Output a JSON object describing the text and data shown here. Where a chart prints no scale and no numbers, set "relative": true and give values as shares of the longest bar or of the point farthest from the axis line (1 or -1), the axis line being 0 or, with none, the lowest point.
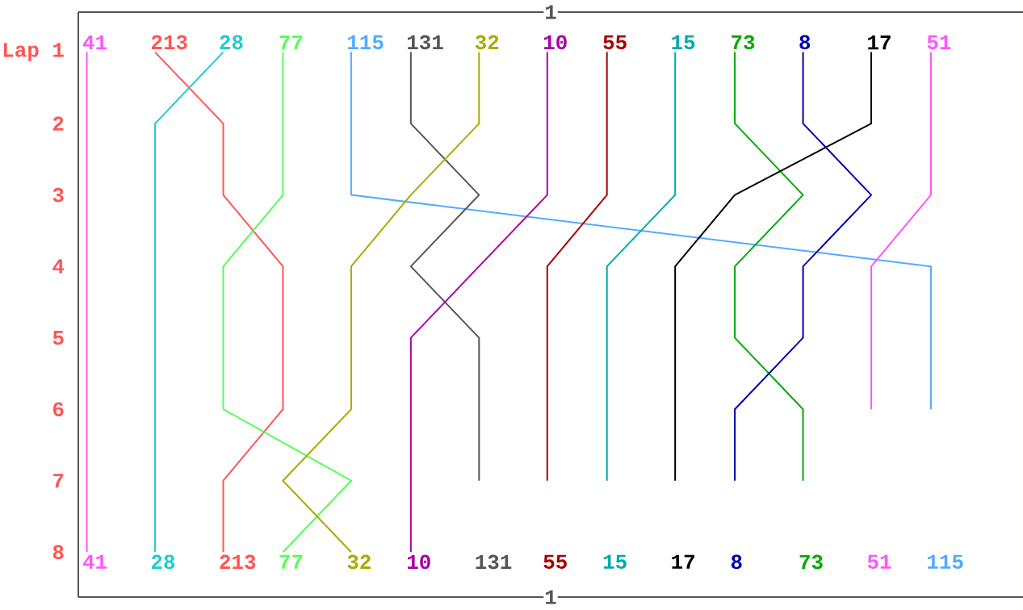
{
  "chart_data": {
    "type": "line",
    "orientation": "horizontal",
    "relative": true,
    "annotations": [
      "1",
      "1"
    ],
    "categories": [
      "Lap 1",
      "2",
      "3",
      "4",
      "5",
      "6",
      "7",
      "8"
    ],
    "series": [
      {
        "name": "41",
        "color": "#ff55ff",
        "values": [
          0.01,
          0.01,
          0.01,
          0.01,
          0.01,
          0.01,
          0.01,
          0.01
        ]
      },
      {
        "name": "213",
        "color": "#ff5555",
        "values": [
          0.09,
          0.17,
          0.17,
          0.24,
          0.24,
          0.24,
          0.17,
          0.17
        ]
      },
      {
        "name": "28",
        "color": "#22cccc",
        "values": [
          0.17,
          0.09,
          0.09,
          0.09,
          0.09,
          0.09,
          0.09,
          0.09
        ]
      },
      {
        "name": "77",
        "color": "#55ff55",
        "values": [
          0.24,
          0.24,
          0.24,
          0.17,
          0.17,
          0.17,
          0.32,
          0.24
        ]
      },
      {
        "name": "115",
        "color": "#55aaff",
        "values": [
          0.32,
          0.32,
          0.32,
          1,
          1,
          1,
          null,
          null
        ]
      },
      {
        "name": "131",
        "color": "#555555",
        "values": [
          0.39,
          0.39,
          0.47,
          0.39,
          0.47,
          0.47,
          0.47,
          null
        ]
      },
      {
        "name": "32",
        "color": "#aaaa00",
        "values": [
          0.47,
          0.47,
          0.39,
          0.32,
          0.32,
          0.32,
          0.24,
          0.32
        ]
      },
      {
        "name": "10",
        "color": "#aa00aa",
        "values": [
          0.55,
          0.55,
          0.55,
          0.47,
          0.39,
          0.39,
          0.39,
          0.39
        ]
      },
      {
        "name": "55",
        "color": "#aa0000",
        "values": [
          0.62,
          0.62,
          0.62,
          0.55,
          0.55,
          0.55,
          0.55,
          null
        ]
      },
      {
        "name": "15",
        "color": "#00aaaa",
        "values": [
          0.7,
          0.7,
          0.7,
          0.62,
          0.62,
          0.62,
          0.62,
          null
        ]
      },
      {
        "name": "73",
        "color": "#00aa00",
        "values": [
          0.77,
          0.77,
          0.85,
          0.77,
          0.77,
          0.85,
          0.85,
          null
        ]
      },
      {
        "name": "8",
        "color": "#0000aa",
        "values": [
          0.85,
          0.85,
          0.93,
          0.85,
          0.85,
          0.77,
          0.77,
          null
        ]
      },
      {
        "name": "17",
        "color": "#000000",
        "values": [
          0.93,
          0.93,
          0.77,
          0.7,
          0.7,
          0.7,
          0.7,
          null
        ]
      },
      {
        "name": "51",
        "color": "#ff55ff",
        "values": [
          1,
          1,
          1,
          0.93,
          0.93,
          0.93,
          null,
          null
        ]
      }
    ]
  }
}
